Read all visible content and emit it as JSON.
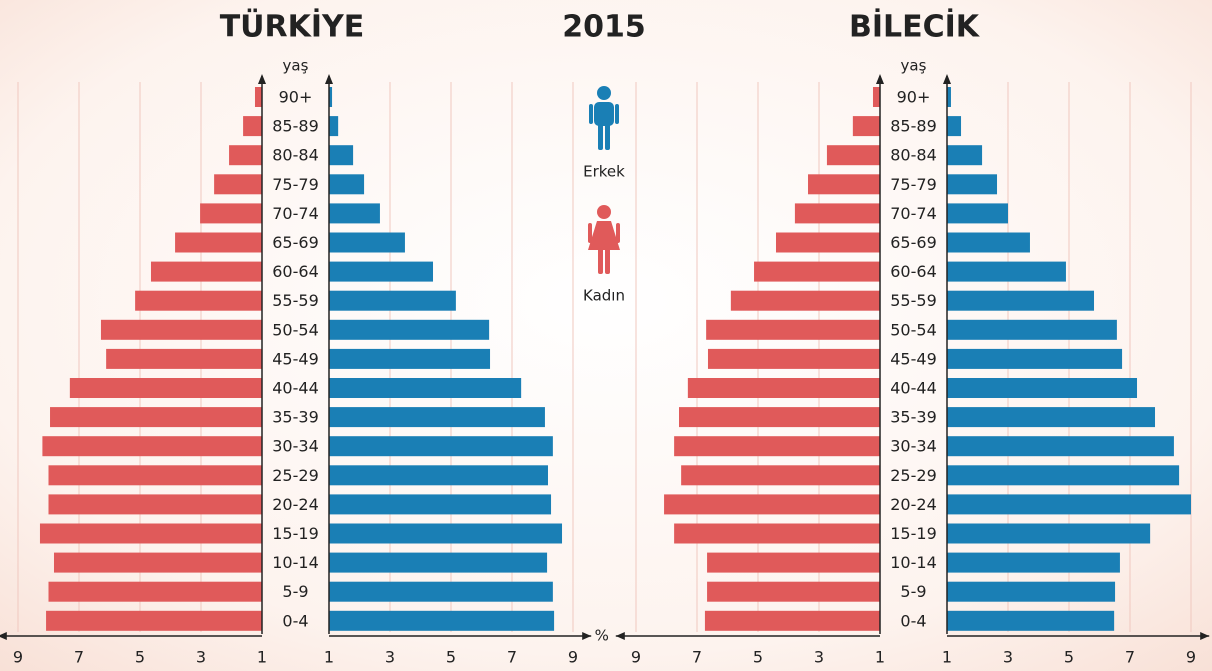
{
  "title": "2015",
  "chart_data": [
    {
      "type": "pyramid",
      "title": "TÜRKİYE",
      "y_label": "yaş",
      "categories": [
        "90+",
        "85-89",
        "80-84",
        "75-79",
        "70-74",
        "65-69",
        "60-64",
        "55-59",
        "50-54",
        "45-49",
        "40-44",
        "35-39",
        "30-34",
        "25-29",
        "20-24",
        "15-19",
        "10-14",
        "5-9",
        "0-4"
      ],
      "series": [
        {
          "name": "Kadın",
          "color": "#e05a5a",
          "side": "left",
          "values": [
            1.23,
            1.62,
            2.08,
            2.57,
            3.03,
            3.85,
            4.64,
            5.16,
            6.28,
            6.11,
            7.3,
            7.95,
            8.2,
            8.0,
            8.0,
            8.28,
            7.82,
            8.0,
            8.08
          ]
        },
        {
          "name": "Erkek",
          "color": "#1a7fb5",
          "side": "right",
          "values": [
            1.1,
            1.3,
            1.79,
            2.15,
            2.67,
            3.49,
            4.41,
            5.16,
            6.25,
            6.28,
            7.3,
            8.08,
            8.34,
            8.18,
            8.28,
            8.64,
            8.15,
            8.34,
            8.38
          ]
        }
      ],
      "xlim": [
        1,
        9.4
      ],
      "xticks": [
        1,
        3,
        5,
        7,
        9
      ],
      "grid": true
    },
    {
      "type": "pyramid",
      "title": "BİLECİK",
      "y_label": "yaş",
      "x_label": "%",
      "categories": [
        "90+",
        "85-89",
        "80-84",
        "75-79",
        "70-74",
        "65-69",
        "60-64",
        "55-59",
        "50-54",
        "45-49",
        "40-44",
        "35-39",
        "30-34",
        "25-29",
        "20-24",
        "15-19",
        "10-14",
        "5-9",
        "0-4"
      ],
      "series": [
        {
          "name": "Kadın",
          "color": "#e05a5a",
          "side": "left",
          "values": [
            1.23,
            1.89,
            2.74,
            3.36,
            3.79,
            4.41,
            5.13,
            5.89,
            6.7,
            6.64,
            7.3,
            7.59,
            7.75,
            7.52,
            8.08,
            7.75,
            6.67,
            6.67,
            6.74
          ]
        },
        {
          "name": "Erkek",
          "color": "#1a7fb5",
          "side": "right",
          "values": [
            1.13,
            1.46,
            2.15,
            2.64,
            3.0,
            3.72,
            4.9,
            5.82,
            6.57,
            6.74,
            7.23,
            7.82,
            8.44,
            8.61,
            9.0,
            7.66,
            6.67,
            6.51,
            6.48
          ]
        }
      ],
      "xlim": [
        1,
        9.4
      ],
      "xticks": [
        1,
        3,
        5,
        7,
        9
      ],
      "grid": true
    }
  ]
}
